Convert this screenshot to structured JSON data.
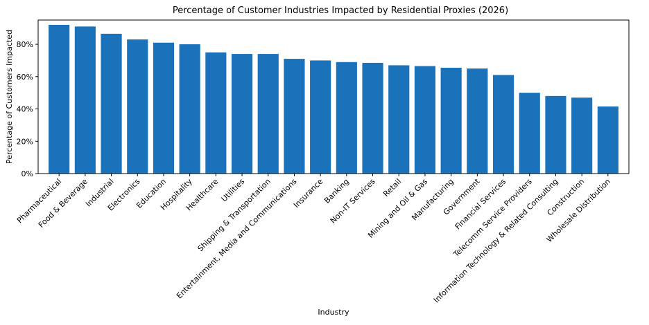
{
  "chart_data": {
    "type": "bar",
    "title": "Percentage of Customer Industries Impacted by Residential Proxies (2026)",
    "xlabel": "Industry",
    "ylabel": "Percentage of Customers Impacted",
    "ylim": [
      0,
      0.95
    ],
    "yticks": [
      {
        "value": 0,
        "label": "0%"
      },
      {
        "value": 0.2,
        "label": "20%"
      },
      {
        "value": 0.4,
        "label": "40%"
      },
      {
        "value": 0.6,
        "label": "60%"
      },
      {
        "value": 0.8,
        "label": "80%"
      }
    ],
    "grid": false,
    "bar_color": "#1a72bb",
    "categories": [
      "Pharmaceutical",
      "Food & Beverage",
      "Industrial",
      "Electronics",
      "Education",
      "Hospitality",
      "Healthcare",
      "Utilities",
      "Shipping & Transportation",
      "Entertainment, Media and Communications",
      "Insurance",
      "Banking",
      "Non-IT Services",
      "Retail",
      "Mining and Oil & Gas",
      "Manufacturing",
      "Government",
      "Financial Services",
      "Telecomm Service Providers",
      "Information Technology & Related Consulting",
      "Construction",
      "Wholesale Distribution"
    ],
    "values": [
      0.92,
      0.91,
      0.865,
      0.83,
      0.81,
      0.8,
      0.75,
      0.74,
      0.74,
      0.71,
      0.7,
      0.69,
      0.685,
      0.67,
      0.665,
      0.655,
      0.65,
      0.61,
      0.5,
      0.48,
      0.47,
      0.415
    ]
  }
}
